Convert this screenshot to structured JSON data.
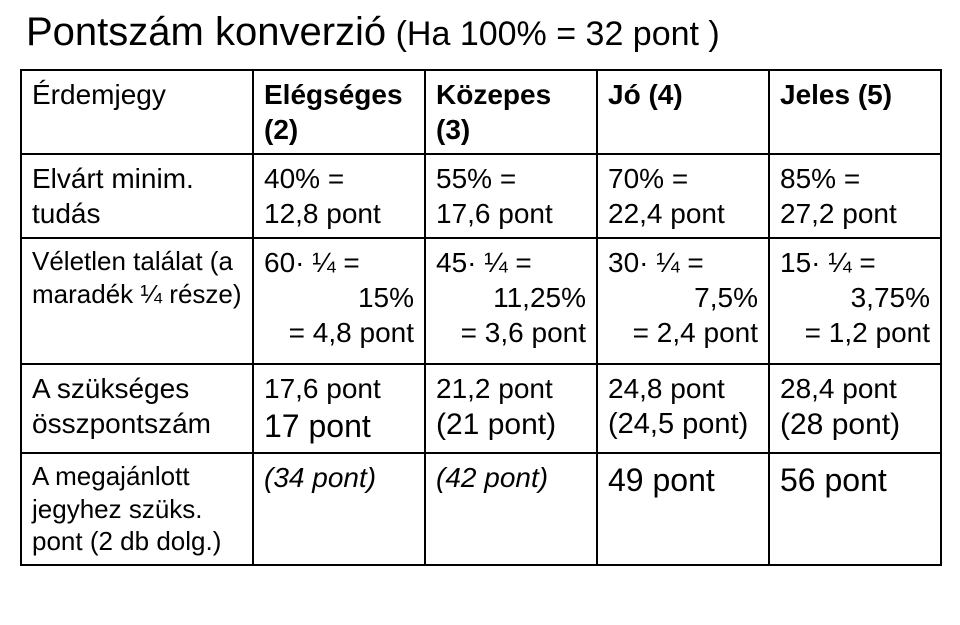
{
  "title_main": "Pontszám konverzió",
  "title_sub": " (Ha 100% = 32 pont )",
  "table": {
    "row0": {
      "c0": "Érdemjegy",
      "c1a": "Elégséges",
      "c1b": "(2)",
      "c2a": "Közepes",
      "c2b": "(3)",
      "c3": "Jó (4)",
      "c4": "Jeles (5)"
    },
    "row1": {
      "c0a": "Elvárt minim.",
      "c0b": "tudás",
      "c1a": "40% =",
      "c1b": "12,8 pont",
      "c2a": "55% =",
      "c2b": "17,6 pont",
      "c3a": "70% =",
      "c3b": "22,4 pont",
      "c4a": "85% =",
      "c4b": "27,2 pont"
    },
    "row2": {
      "c0a": "Véletlen találat (a",
      "c0b": "maradék ¼ része)",
      "c1a": "60· ¼ =",
      "c1b": "15%",
      "c1c": "= 4,8 pont",
      "c2a": "45· ¼ =",
      "c2b": "11,25%",
      "c2c": "= 3,6 pont",
      "c3a": "30· ¼ =",
      "c3b": "7,5%",
      "c3c": "= 2,4 pont",
      "c4a": "15· ¼ =",
      "c4b": "3,75%",
      "c4c": "= 1,2 pont"
    },
    "row3": {
      "c0a": "A szükséges",
      "c0b": "összpontszám",
      "c1a": "17,6 pont",
      "c1b": "17 pont",
      "c2a": "21,2 pont",
      "c2b": "(21 pont)",
      "c3a": "24,8 pont",
      "c3b": "(24,5 pont)",
      "c4a": "28,4 pont",
      "c4b": "(28 pont)"
    },
    "row4": {
      "c0a": "A megajánlott",
      "c0b": "jegyhez szüks.",
      "c0c": "pont (2 db dolg.)",
      "c1": "(34 pont)",
      "c2": "(42 pont)",
      "c3": "49 pont",
      "c4": "56 pont"
    }
  }
}
